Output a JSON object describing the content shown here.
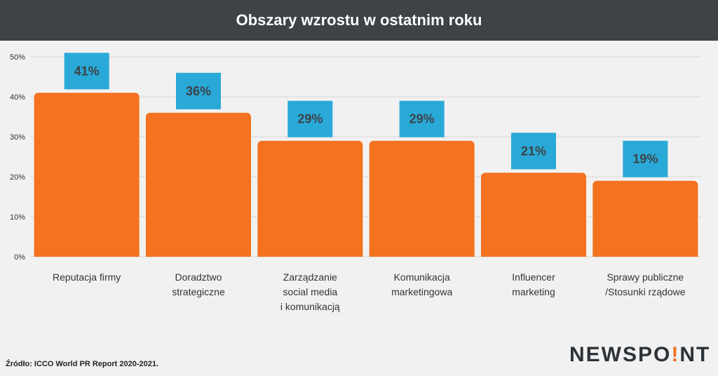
{
  "header": {
    "title": "Obszary wzrostu w ostatnim roku"
  },
  "chart_data": {
    "type": "bar",
    "title": "Obszary wzrostu w ostatnim roku",
    "categories": [
      [
        "Reputacja firmy"
      ],
      [
        "Doradztwo",
        "strategiczne"
      ],
      [
        "Zarządzanie",
        "social media",
        "i komunikacją"
      ],
      [
        "Komunikacja",
        "marketingowa"
      ],
      [
        "Influencer",
        "marketing"
      ],
      [
        "Sprawy publiczne",
        "/Stosunki rządowe"
      ]
    ],
    "values": [
      41,
      36,
      29,
      29,
      21,
      19
    ],
    "value_labels": [
      "41%",
      "36%",
      "29%",
      "29%",
      "21%",
      "19%"
    ],
    "ylim": [
      0,
      50
    ],
    "yticks": [
      0,
      10,
      20,
      30,
      40,
      50
    ],
    "ytick_labels": [
      "0%",
      "10%",
      "20%",
      "30%",
      "40%",
      "50%"
    ],
    "grid": true,
    "colors": {
      "bar": "#f47220",
      "label_box": "#29a9d8",
      "grid": "#d8d8d8"
    }
  },
  "footer": {
    "source": "Źródło: ICCO World PR Report 2020-2021.",
    "logo": {
      "pre": "NEWSPO",
      "accent": "!",
      "post": "NT"
    }
  }
}
